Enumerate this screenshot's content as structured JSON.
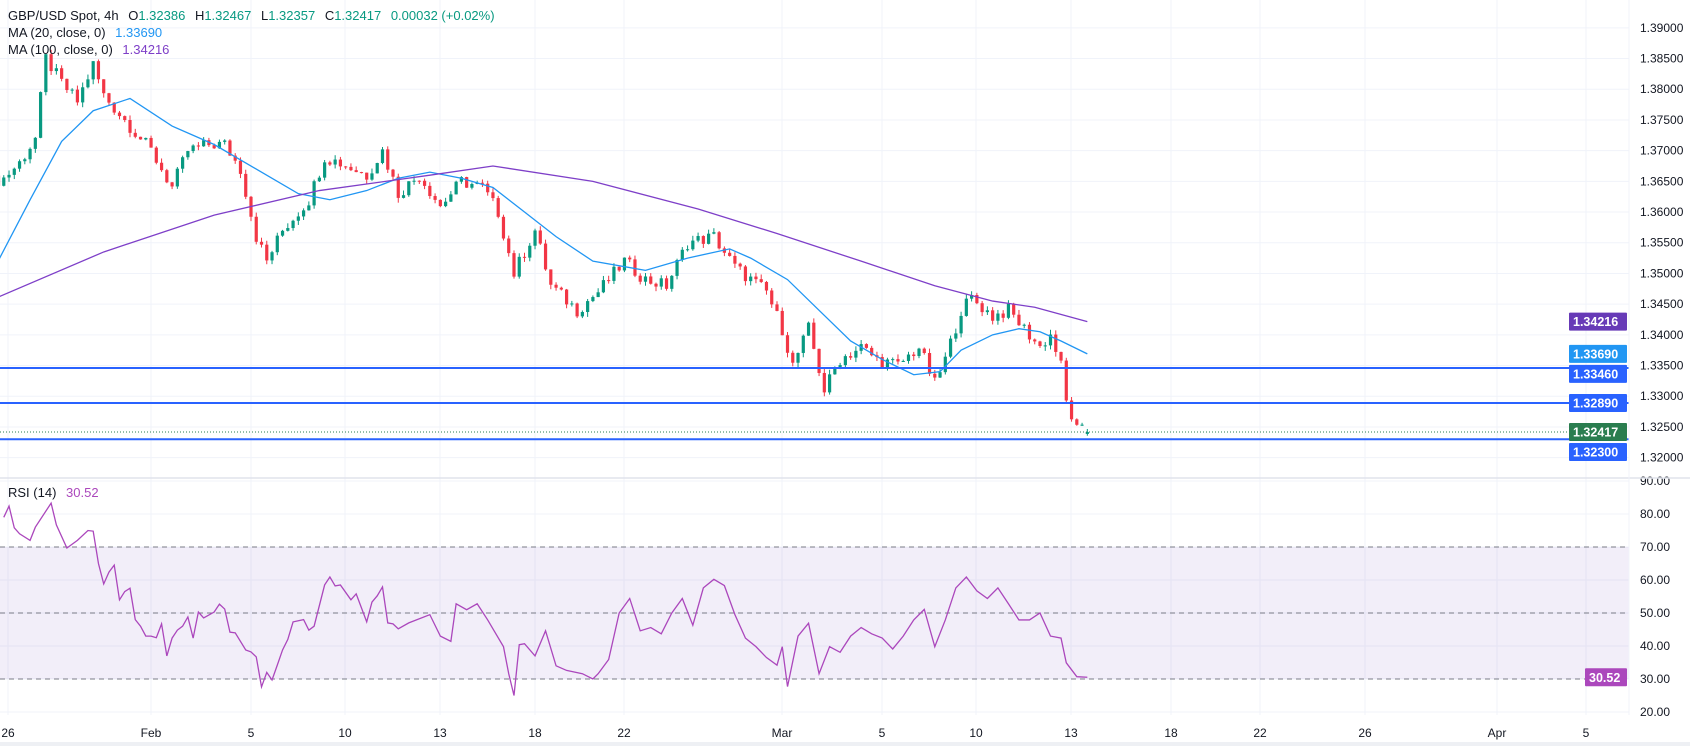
{
  "legend": {
    "symbol": "GBP/USD Spot, 4h",
    "open_label": "O",
    "open": "1.32386",
    "high_label": "H",
    "high": "1.32467",
    "low_label": "L",
    "low": "1.32357",
    "close_label": "C",
    "close": "1.32417",
    "change": "0.00032 (+0.02%)",
    "ma20_label": "MA (20, close, 0)",
    "ma20_value": "1.33690",
    "ma100_label": "MA (100, close, 0)",
    "ma100_value": "1.34216",
    "rsi_label": "RSI (14)",
    "rsi_value": "30.52"
  },
  "colors": {
    "up": "#089981",
    "down": "#f23645",
    "ma20": "#2196f3",
    "ma100": "#7e3fc8",
    "ma100_box": "#673ab7",
    "level": "#2962ff",
    "last_price": "#2a7d4f",
    "rsi": "#ab47bc",
    "rsi_band": "#7e57c2",
    "grid": "#f0f3fa"
  },
  "chart_data": [
    {
      "type": "candlestick",
      "interval": "4h",
      "ylim": [
        1.318,
        1.393
      ],
      "grid": true,
      "y_ticks": [
        "1.39000",
        "1.38500",
        "1.38000",
        "1.37500",
        "1.37000",
        "1.36500",
        "1.36000",
        "1.35500",
        "1.35000",
        "1.34500",
        "1.34000",
        "1.33500",
        "1.33000",
        "1.32500",
        "1.32000"
      ],
      "x_ticks": [
        "26",
        "Feb",
        "5",
        "10",
        "13",
        "18",
        "22",
        "Mar",
        "5",
        "10",
        "13",
        "18",
        "22",
        "26",
        "Apr",
        "5"
      ],
      "close_path": [
        [
          "01-26 00",
          1.365
        ],
        [
          "01-26 08",
          1.3655
        ],
        [
          "01-26 20",
          1.368
        ],
        [
          "01-27 08",
          1.372
        ],
        [
          "01-27 16",
          1.385
        ],
        [
          "01-28 04",
          1.381
        ],
        [
          "01-28 16",
          1.378
        ],
        [
          "01-29 04",
          1.384
        ],
        [
          "01-29 12",
          1.379
        ],
        [
          "01-29 20",
          1.377
        ],
        [
          "01-30 12",
          1.373
        ],
        [
          "02-02 00",
          1.37
        ],
        [
          "02-02 16",
          1.364
        ],
        [
          "02-03 04",
          1.37
        ],
        [
          "02-03 20",
          1.371
        ],
        [
          "02-04 08",
          1.371
        ],
        [
          "02-04 20",
          1.367
        ],
        [
          "02-05 08",
          1.356
        ],
        [
          "02-05 16",
          1.352
        ],
        [
          "02-06 04",
          1.357
        ],
        [
          "02-09 00",
          1.362
        ],
        [
          "02-09 12",
          1.369
        ],
        [
          "02-10 00",
          1.368
        ],
        [
          "02-10 20",
          1.366
        ],
        [
          "02-11 08",
          1.37
        ],
        [
          "02-11 20",
          1.363
        ],
        [
          "02-12 12",
          1.366
        ],
        [
          "02-13 04",
          1.361
        ],
        [
          "02-13 20",
          1.365
        ],
        [
          "02-16 12",
          1.364
        ],
        [
          "02-17 00",
          1.36
        ],
        [
          "02-17 12",
          1.35
        ],
        [
          "02-18 04",
          1.357
        ],
        [
          "02-18 16",
          1.348
        ],
        [
          "02-19 12",
          1.344
        ],
        [
          "02-20 04",
          1.347
        ],
        [
          "02-23 00",
          1.352
        ],
        [
          "02-23 16",
          1.349
        ],
        [
          "02-24 08",
          1.348
        ],
        [
          "02-25 00",
          1.355
        ],
        [
          "02-25 20",
          1.356
        ],
        [
          "02-26 12",
          1.351
        ],
        [
          "02-27 00",
          1.349
        ],
        [
          "02-27 12",
          1.347
        ],
        [
          "03-02 00",
          1.341
        ],
        [
          "03-02 08",
          1.335
        ],
        [
          "03-02 20",
          1.341
        ],
        [
          "03-03 08",
          1.331
        ],
        [
          "03-03 20",
          1.336
        ],
        [
          "03-04 12",
          1.338
        ],
        [
          "03-05 00",
          1.336
        ],
        [
          "03-05 16",
          1.335
        ],
        [
          "03-06 08",
          1.338
        ],
        [
          "03-06 20",
          1.332
        ],
        [
          "03-09 04",
          1.336
        ],
        [
          "03-09 16",
          1.344
        ],
        [
          "03-10 00",
          1.346
        ],
        [
          "03-10 16",
          1.343
        ],
        [
          "03-11 04",
          1.344
        ],
        [
          "03-11 16",
          1.341
        ],
        [
          "03-12 04",
          1.338
        ],
        [
          "03-12 12",
          1.34
        ],
        [
          "03-12 20",
          1.335
        ],
        [
          "03-13 00",
          1.329
        ],
        [
          "03-13 08",
          1.3245
        ],
        [
          "03-13 16",
          1.32417
        ]
      ],
      "last_bar": {
        "open": 1.32386,
        "high": 1.32467,
        "low": 1.32357,
        "close": 1.32417
      },
      "series": [
        {
          "name": "MA (20, close, 0)",
          "type": "line",
          "points": [
            [
              "01-26 00",
              1.3505
            ],
            [
              "01-27 04",
              1.362
            ],
            [
              "01-28 04",
              1.3715
            ],
            [
              "01-29 04",
              1.3765
            ],
            [
              "01-30 08",
              1.3785
            ],
            [
              "02-02 16",
              1.374
            ],
            [
              "02-04 00",
              1.371
            ],
            [
              "02-05 08",
              1.367
            ],
            [
              "02-06 16",
              1.363
            ],
            [
              "02-09 16",
              1.362
            ],
            [
              "02-10 20",
              1.3635
            ],
            [
              "02-11 20",
              1.3655
            ],
            [
              "02-12 20",
              1.3665
            ],
            [
              "02-13 20",
              1.3655
            ],
            [
              "02-16 20",
              1.364
            ],
            [
              "02-17 20",
              1.36
            ],
            [
              "02-18 20",
              1.356
            ],
            [
              "02-20 00",
              1.352
            ],
            [
              "02-23 16",
              1.3505
            ],
            [
              "02-25 00",
              1.3525
            ],
            [
              "02-26 08",
              1.354
            ],
            [
              "02-27 00",
              1.3525
            ],
            [
              "03-02 04",
              1.349
            ],
            [
              "03-03 04",
              1.344
            ],
            [
              "03-04 04",
              1.339
            ],
            [
              "03-05 04",
              1.336
            ],
            [
              "03-06 04",
              1.3335
            ],
            [
              "03-09 00",
              1.334
            ],
            [
              "03-09 16",
              1.3375
            ],
            [
              "03-10 16",
              1.34
            ],
            [
              "03-11 12",
              1.341
            ],
            [
              "03-12 04",
              1.3405
            ],
            [
              "03-12 20",
              1.339
            ],
            [
              "03-13 16",
              1.3369
            ]
          ]
        },
        {
          "name": "MA (100, close, 0)",
          "type": "line",
          "points": [
            [
              "01-26 00",
              1.3458
            ],
            [
              "01-29 12",
              1.3535
            ],
            [
              "02-04 00",
              1.3595
            ],
            [
              "02-09 08",
              1.3635
            ],
            [
              "02-12 20",
              1.366
            ],
            [
              "02-16 20",
              1.3675
            ],
            [
              "02-20 00",
              1.365
            ],
            [
              "02-25 08",
              1.3605
            ],
            [
              "02-27 20",
              1.3565
            ],
            [
              "03-04 12",
              1.352
            ],
            [
              "03-06 20",
              1.348
            ],
            [
              "03-10 16",
              1.3455
            ],
            [
              "03-12 00",
              1.3445
            ],
            [
              "03-13 16",
              1.34216
            ]
          ]
        }
      ],
      "levels": [
        {
          "value": 1.3346,
          "label": "1.33460"
        },
        {
          "value": 1.3289,
          "label": "1.32890"
        },
        {
          "value": 1.323,
          "label": "1.32300"
        }
      ],
      "last_price": {
        "value": 1.32417,
        "label": "1.32417"
      },
      "ma20_last": {
        "value": 1.3369,
        "label": "1.33690"
      },
      "ma100_last": {
        "value": 1.34216,
        "label": "1.34216"
      }
    },
    {
      "type": "line",
      "name": "RSI (14)",
      "ylim": [
        18,
        92
      ],
      "y_ticks": [
        "90.00",
        "80.00",
        "70.00",
        "60.00",
        "50.00",
        "40.00",
        "30.00",
        "20.00"
      ],
      "band": [
        30,
        70
      ],
      "dashed_levels": [
        70,
        50,
        30
      ],
      "last": {
        "value": 30.52,
        "label": "30.52"
      },
      "points": [
        [
          "01-26 08",
          79
        ],
        [
          "01-26 12",
          82.4
        ],
        [
          "01-26 16",
          75.8
        ],
        [
          "01-26 20",
          74
        ],
        [
          "01-27 04",
          72
        ],
        [
          "01-27 08",
          76
        ],
        [
          "01-27 20",
          83.3
        ],
        [
          "01-28 00",
          76.7
        ],
        [
          "01-28 08",
          69.7
        ],
        [
          "01-28 16",
          72
        ],
        [
          "01-29 00",
          75
        ],
        [
          "01-29 04",
          74.8
        ],
        [
          "01-29 08",
          65
        ],
        [
          "01-29 12",
          58.8
        ],
        [
          "01-29 16",
          62.4
        ],
        [
          "01-29 20",
          64.5
        ],
        [
          "01-30 00",
          54
        ],
        [
          "01-30 04",
          56.5
        ],
        [
          "01-30 08",
          57.5
        ],
        [
          "01-30 12",
          48
        ],
        [
          "01-30 16",
          46
        ],
        [
          "01-30 20",
          43
        ],
        [
          "02-02 00",
          43
        ],
        [
          "02-02 04",
          42.5
        ],
        [
          "02-02 08",
          46.7
        ],
        [
          "02-02 12",
          37
        ],
        [
          "02-02 16",
          42.4
        ],
        [
          "02-02 20",
          44.8
        ],
        [
          "02-03 00",
          46
        ],
        [
          "02-03 04",
          48.8
        ],
        [
          "02-03 08",
          42.4
        ],
        [
          "02-03 12",
          50.3
        ],
        [
          "02-03 16",
          48.5
        ],
        [
          "02-04 00",
          50.3
        ],
        [
          "02-04 04",
          52.7
        ],
        [
          "02-04 08",
          51.2
        ],
        [
          "02-04 12",
          44.2
        ],
        [
          "02-04 16",
          44
        ],
        [
          "02-05 00",
          38.8
        ],
        [
          "02-05 04",
          38.2
        ],
        [
          "02-05 08",
          36.7
        ],
        [
          "02-05 12",
          27.6
        ],
        [
          "02-05 16",
          32
        ],
        [
          "02-05 20",
          29.7
        ],
        [
          "02-06 00",
          34.2
        ],
        [
          "02-06 04",
          38.8
        ],
        [
          "02-06 08",
          42
        ],
        [
          "02-06 12",
          47.3
        ],
        [
          "02-06 20",
          48
        ],
        [
          "02-09 00",
          44.8
        ],
        [
          "02-09 04",
          46
        ],
        [
          "02-09 12",
          58.5
        ],
        [
          "02-09 16",
          60.9
        ],
        [
          "02-09 20",
          58.2
        ],
        [
          "02-10 00",
          58.5
        ],
        [
          "02-10 08",
          54
        ],
        [
          "02-10 12",
          55.8
        ],
        [
          "02-10 20",
          47.3
        ],
        [
          "02-11 00",
          53.3
        ],
        [
          "02-11 04",
          55.2
        ],
        [
          "02-11 08",
          57.9
        ],
        [
          "02-11 12",
          47
        ],
        [
          "02-11 16",
          46.7
        ],
        [
          "02-11 20",
          45.2
        ],
        [
          "02-12 04",
          47
        ],
        [
          "02-12 20",
          49.5
        ],
        [
          "02-13 04",
          43
        ],
        [
          "02-13 12",
          41.4
        ],
        [
          "02-13 16",
          52.8
        ],
        [
          "02-16 00",
          51
        ],
        [
          "02-16 08",
          52.8
        ],
        [
          "02-16 16",
          47.9
        ],
        [
          "02-17 04",
          39.8
        ],
        [
          "02-17 08",
          31.6
        ],
        [
          "02-17 12",
          25
        ],
        [
          "02-17 16",
          40.4
        ],
        [
          "02-17 20",
          40.7
        ],
        [
          "02-18 04",
          37
        ],
        [
          "02-18 12",
          44.6
        ],
        [
          "02-18 20",
          34
        ],
        [
          "02-19 04",
          32.6
        ],
        [
          "02-19 16",
          31.6
        ],
        [
          "02-20 00",
          30
        ],
        [
          "02-20 04",
          31.6
        ],
        [
          "02-20 12",
          35.9
        ],
        [
          "02-20 20",
          50
        ],
        [
          "02-23 04",
          54.4
        ],
        [
          "02-23 12",
          44.6
        ],
        [
          "02-23 20",
          45.6
        ],
        [
          "02-24 04",
          43.7
        ],
        [
          "02-24 12",
          50
        ],
        [
          "02-24 20",
          54.4
        ],
        [
          "02-25 04",
          46.3
        ],
        [
          "02-25 12",
          57.6
        ],
        [
          "02-25 20",
          60.2
        ],
        [
          "02-26 04",
          58.3
        ],
        [
          "02-26 12",
          49.5
        ],
        [
          "02-26 20",
          42.4
        ],
        [
          "02-27 04",
          39.8
        ],
        [
          "02-27 12",
          36.5
        ],
        [
          "02-27 20",
          34.2
        ],
        [
          "03-02 00",
          39.8
        ],
        [
          "03-02 04",
          27.7
        ],
        [
          "03-02 12",
          43
        ],
        [
          "03-02 20",
          46.9
        ],
        [
          "03-03 04",
          31.6
        ],
        [
          "03-03 12",
          39.8
        ],
        [
          "03-03 20",
          38.1
        ],
        [
          "03-04 04",
          43
        ],
        [
          "03-04 12",
          45.6
        ],
        [
          "03-04 20",
          43.7
        ],
        [
          "03-05 04",
          42.4
        ],
        [
          "03-05 12",
          39.1
        ],
        [
          "03-05 20",
          43
        ],
        [
          "03-06 04",
          47.9
        ],
        [
          "03-06 12",
          51.1
        ],
        [
          "03-06 20",
          39.8
        ],
        [
          "03-09 04",
          47.9
        ],
        [
          "03-09 12",
          57.6
        ],
        [
          "03-09 20",
          60.9
        ],
        [
          "03-10 04",
          56.7
        ],
        [
          "03-10 12",
          54.4
        ],
        [
          "03-10 20",
          57.6
        ],
        [
          "03-11 04",
          52.8
        ],
        [
          "03-11 12",
          47.9
        ],
        [
          "03-11 20",
          47.9
        ],
        [
          "03-12 04",
          50
        ],
        [
          "03-12 12",
          43
        ],
        [
          "03-12 20",
          42.4
        ],
        [
          "03-13 00",
          34.9
        ],
        [
          "03-13 08",
          30.7
        ],
        [
          "03-13 16",
          30.52
        ]
      ]
    }
  ]
}
